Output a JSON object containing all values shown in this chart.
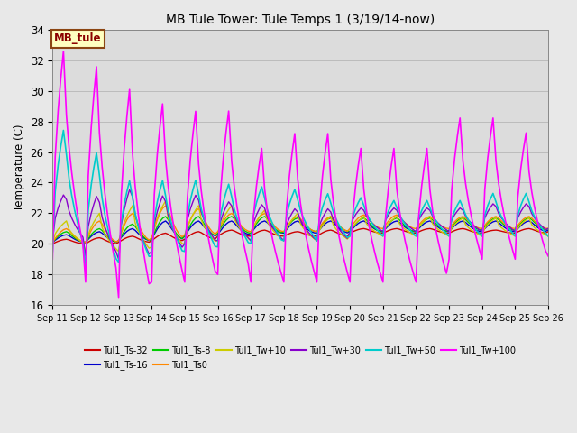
{
  "title": "MB Tule Tower: Tule Temps 1 (3/19/14-now)",
  "ylabel": "Temperature (C)",
  "ylim": [
    16,
    34
  ],
  "yticks": [
    16,
    18,
    20,
    22,
    24,
    26,
    28,
    30,
    32,
    34
  ],
  "xtick_labels": [
    "Sep 11",
    "Sep 12",
    "Sep 13",
    "Sep 14",
    "Sep 15",
    "Sep 16",
    "Sep 17",
    "Sep 18",
    "Sep 19",
    "Sep 20",
    "Sep 21",
    "Sep 22",
    "Sep 23",
    "Sep 24",
    "Sep 25",
    "Sep 26"
  ],
  "annotation_text": "MB_tule",
  "annotation_color": "#8B0000",
  "annotation_bg": "#FFFFC0",
  "annotation_border": "#8B4513",
  "series": [
    {
      "name": "Tul1_Ts-32",
      "color": "#CC0000",
      "linewidth": 1.0
    },
    {
      "name": "Tul1_Ts-16",
      "color": "#0000CC",
      "linewidth": 1.0
    },
    {
      "name": "Tul1_Ts-8",
      "color": "#00CC00",
      "linewidth": 1.0
    },
    {
      "name": "Tul1_Ts0",
      "color": "#FF8800",
      "linewidth": 1.0
    },
    {
      "name": "Tul1_Tw+10",
      "color": "#CCCC00",
      "linewidth": 1.0
    },
    {
      "name": "Tul1_Tw+30",
      "color": "#8800CC",
      "linewidth": 1.0
    },
    {
      "name": "Tul1_Tw+50",
      "color": "#00CCCC",
      "linewidth": 1.2
    },
    {
      "name": "Tul1_Tw+100",
      "color": "#FF00FF",
      "linewidth": 1.2
    }
  ],
  "x": [
    11.0,
    11.08,
    11.17,
    11.25,
    11.33,
    11.42,
    11.5,
    11.58,
    11.67,
    11.75,
    11.83,
    11.92,
    12.0,
    12.08,
    12.17,
    12.25,
    12.33,
    12.42,
    12.5,
    12.58,
    12.67,
    12.75,
    12.83,
    12.92,
    13.0,
    13.08,
    13.17,
    13.25,
    13.33,
    13.42,
    13.5,
    13.58,
    13.67,
    13.75,
    13.83,
    13.92,
    14.0,
    14.08,
    14.17,
    14.25,
    14.33,
    14.42,
    14.5,
    14.58,
    14.67,
    14.75,
    14.83,
    14.92,
    15.0,
    15.08,
    15.17,
    15.25,
    15.33,
    15.42,
    15.5,
    15.58,
    15.67,
    15.75,
    15.83,
    15.92,
    16.0,
    16.08,
    16.17,
    16.25,
    16.33,
    16.42,
    16.5,
    16.58,
    16.67,
    16.75,
    16.83,
    16.92,
    17.0,
    17.08,
    17.17,
    17.25,
    17.33,
    17.42,
    17.5,
    17.58,
    17.67,
    17.75,
    17.83,
    17.92,
    18.0,
    18.08,
    18.17,
    18.25,
    18.33,
    18.42,
    18.5,
    18.58,
    18.67,
    18.75,
    18.83,
    18.92,
    19.0,
    19.08,
    19.17,
    19.25,
    19.33,
    19.42,
    19.5,
    19.58,
    19.67,
    19.75,
    19.83,
    19.92,
    20.0,
    20.08,
    20.17,
    20.25,
    20.33,
    20.42,
    20.5,
    20.58,
    20.67,
    20.75,
    20.83,
    20.92,
    21.0,
    21.08,
    21.17,
    21.25,
    21.33,
    21.42,
    21.5,
    21.58,
    21.67,
    21.75,
    21.83,
    21.92,
    22.0,
    22.08,
    22.17,
    22.25,
    22.33,
    22.42,
    22.5,
    22.58,
    22.67,
    22.75,
    22.83,
    22.92,
    23.0,
    23.08,
    23.17,
    23.25,
    23.33,
    23.42,
    23.5,
    23.58,
    23.67,
    23.75,
    23.83,
    23.92,
    24.0,
    24.08,
    24.17,
    24.25,
    24.33,
    24.42,
    24.5,
    24.58,
    24.67,
    24.75,
    24.83,
    24.92,
    25.0,
    25.08,
    25.17,
    25.25,
    25.33,
    25.42,
    25.5,
    25.58,
    25.67,
    25.75,
    25.83,
    25.92,
    26.0
  ],
  "Ts32": [
    20.1,
    20.1,
    20.1,
    20.1,
    20.1,
    20.1,
    20.1,
    20.1,
    20.1,
    20.1,
    20.1,
    20.1,
    20.2,
    20.2,
    20.2,
    20.2,
    20.2,
    20.2,
    20.2,
    20.2,
    20.2,
    20.2,
    20.2,
    20.2,
    20.3,
    20.3,
    20.3,
    20.3,
    20.3,
    20.3,
    20.3,
    20.3,
    20.3,
    20.3,
    20.3,
    20.3,
    20.4,
    20.4,
    20.4,
    20.4,
    20.4,
    20.5,
    20.5,
    20.5,
    20.5,
    20.5,
    20.5,
    20.5,
    20.5,
    20.5,
    20.5,
    20.5,
    20.5,
    20.5,
    20.6,
    20.6,
    20.6,
    20.6,
    20.6,
    20.6,
    20.6,
    20.6,
    20.6,
    20.6,
    20.6,
    20.7,
    20.7,
    20.7,
    20.7,
    20.7,
    20.7,
    20.7,
    20.7,
    20.7,
    20.7,
    20.7,
    20.7,
    20.7,
    20.7,
    20.7,
    20.7,
    20.7,
    20.7,
    20.7,
    20.7,
    20.7,
    20.7,
    20.7,
    20.7,
    20.7,
    20.7,
    20.7,
    20.7,
    20.7,
    20.7,
    20.7,
    20.7,
    20.7,
    20.7,
    20.7,
    20.7,
    20.8,
    20.8,
    20.8,
    20.8,
    20.8,
    20.8,
    20.8,
    20.8,
    20.8,
    20.8,
    20.8,
    20.8,
    20.8,
    20.8,
    20.8,
    20.8,
    20.8,
    20.8,
    20.8,
    20.8,
    20.8,
    20.8,
    20.8,
    20.8,
    20.8,
    20.8,
    20.8,
    20.8,
    20.8,
    20.9,
    20.9,
    20.9,
    20.9,
    20.9,
    20.9,
    20.9,
    20.9,
    20.9,
    20.9,
    20.9,
    20.9,
    20.9,
    20.9,
    20.9,
    20.9,
    20.9,
    20.9,
    20.9,
    20.9,
    20.9,
    20.9,
    20.9,
    20.9,
    20.9,
    20.9,
    20.9,
    20.9,
    20.9,
    20.9,
    20.9,
    20.9,
    20.9,
    20.9,
    20.9,
    20.9,
    20.9,
    20.9,
    20.9,
    20.9,
    20.9,
    20.9,
    20.9,
    20.9,
    20.9,
    20.9,
    20.9,
    20.9,
    20.9,
    20.9,
    20.9
  ]
}
